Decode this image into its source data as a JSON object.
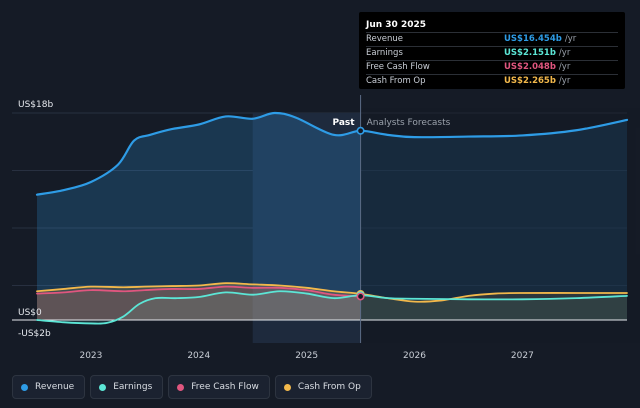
{
  "colors": {
    "revenue": "#2e9ce6",
    "earnings": "#5ce6d6",
    "free_cash_flow": "#e0567f",
    "cash_from_op": "#f2b84b",
    "background": "#151b26"
  },
  "tooltip": {
    "date": "Jun 30 2025",
    "rows": [
      {
        "label": "Revenue",
        "value": "US$16.454b",
        "unit": "/yr"
      },
      {
        "label": "Earnings",
        "value": "US$2.151b",
        "unit": "/yr"
      },
      {
        "label": "Free Cash Flow",
        "value": "US$2.048b",
        "unit": "/yr"
      },
      {
        "label": "Cash From Op",
        "value": "US$2.265b",
        "unit": "/yr"
      }
    ]
  },
  "legend": [
    {
      "label": "Revenue",
      "color": "#2e9ce6"
    },
    {
      "label": "Earnings",
      "color": "#5ce6d6"
    },
    {
      "label": "Free Cash Flow",
      "color": "#e0567f"
    },
    {
      "label": "Cash From Op",
      "color": "#f2b84b"
    }
  ],
  "chart_data": {
    "type": "line",
    "title": "",
    "ylim": [
      -2,
      18
    ],
    "ytick_labels": [
      {
        "value": 18,
        "label": "US$18b"
      },
      {
        "value": 0,
        "label": "US$0"
      },
      {
        "value": -2,
        "label": "-US$2b"
      }
    ],
    "xlim": [
      2022.5,
      2027.97
    ],
    "xticks": [
      2023,
      2024,
      2025,
      2026,
      2027
    ],
    "xtick_labels": [
      "2023",
      "2024",
      "2025",
      "2026",
      "2027"
    ],
    "past_label": "Past",
    "forecast_label": "Analysts Forecasts",
    "divider_x": 2025.5,
    "highlight_band": [
      2024.5,
      2025.5
    ],
    "series": [
      {
        "name": "Revenue",
        "key": "revenue",
        "x": [
          2022.5,
          2022.75,
          2023.0,
          2023.25,
          2023.4,
          2023.55,
          2023.75,
          2024.0,
          2024.25,
          2024.5,
          2024.7,
          2024.9,
          2025.25,
          2025.5,
          2025.75,
          2026.0,
          2026.5,
          2027.0,
          2027.5,
          2027.97
        ],
        "y": [
          10.9,
          11.3,
          12.0,
          13.5,
          15.6,
          16.1,
          16.6,
          17.0,
          17.7,
          17.5,
          18.0,
          17.6,
          16.1,
          16.45,
          16.1,
          15.9,
          15.95,
          16.05,
          16.5,
          17.4
        ]
      },
      {
        "name": "Earnings",
        "key": "earnings",
        "x": [
          2022.5,
          2022.75,
          2023.0,
          2023.15,
          2023.3,
          2023.45,
          2023.6,
          2023.8,
          2024.0,
          2024.25,
          2024.5,
          2024.75,
          2025.0,
          2025.25,
          2025.5,
          2025.75,
          2026.0,
          2026.5,
          2027.0,
          2027.5,
          2027.97
        ],
        "y": [
          0.0,
          -0.2,
          -0.3,
          -0.25,
          0.3,
          1.4,
          1.9,
          1.9,
          2.0,
          2.4,
          2.2,
          2.5,
          2.3,
          1.9,
          2.15,
          1.9,
          1.85,
          1.8,
          1.8,
          1.9,
          2.1
        ]
      },
      {
        "name": "Free Cash Flow",
        "key": "free_cash_flow",
        "x": [
          2022.5,
          2022.75,
          2023.0,
          2023.3,
          2023.5,
          2023.75,
          2024.0,
          2024.25,
          2024.5,
          2024.75,
          2025.0,
          2025.25,
          2025.5
        ],
        "y": [
          2.3,
          2.4,
          2.6,
          2.5,
          2.6,
          2.7,
          2.7,
          2.9,
          2.8,
          2.8,
          2.6,
          2.2,
          2.05
        ]
      },
      {
        "name": "Cash From Op",
        "key": "cash_from_op",
        "x": [
          2022.5,
          2022.75,
          2023.0,
          2023.3,
          2023.5,
          2023.75,
          2024.0,
          2024.25,
          2024.5,
          2024.75,
          2025.0,
          2025.25,
          2025.5,
          2025.75,
          2026.0,
          2026.25,
          2026.5,
          2026.75,
          2027.0,
          2027.5,
          2027.97
        ],
        "y": [
          2.5,
          2.7,
          2.9,
          2.85,
          2.9,
          2.95,
          3.0,
          3.2,
          3.1,
          3.0,
          2.8,
          2.5,
          2.27,
          1.9,
          1.6,
          1.7,
          2.1,
          2.3,
          2.35,
          2.35,
          2.35
        ]
      }
    ],
    "markers": [
      {
        "series": "revenue",
        "x": 2025.5,
        "y": 16.454
      },
      {
        "series": "cash_from_op",
        "x": 2025.5,
        "y": 2.265
      },
      {
        "series": "earnings",
        "x": 2025.5,
        "y": 2.151
      },
      {
        "series": "free_cash_flow",
        "x": 2025.5,
        "y": 2.048
      }
    ]
  }
}
